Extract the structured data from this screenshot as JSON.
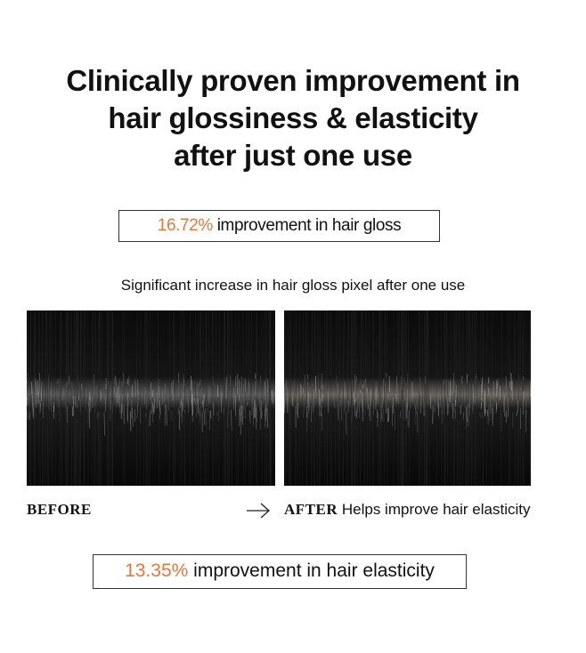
{
  "headline": [
    "Clinically proven improvement in",
    "hair glossiness & elasticity",
    "after just one use"
  ],
  "gloss_stat": {
    "highlight": "16.72%",
    "text": "improvement in hair gloss"
  },
  "caption": "Significant increase in hair gloss pixel after one use",
  "before_label": "BEFORE",
  "after_label": "AFTER",
  "after_text": "Helps improve hair elasticity",
  "elasticity_stat": {
    "highlight": "13.35%",
    "text": "improvement in hair elasticity"
  }
}
